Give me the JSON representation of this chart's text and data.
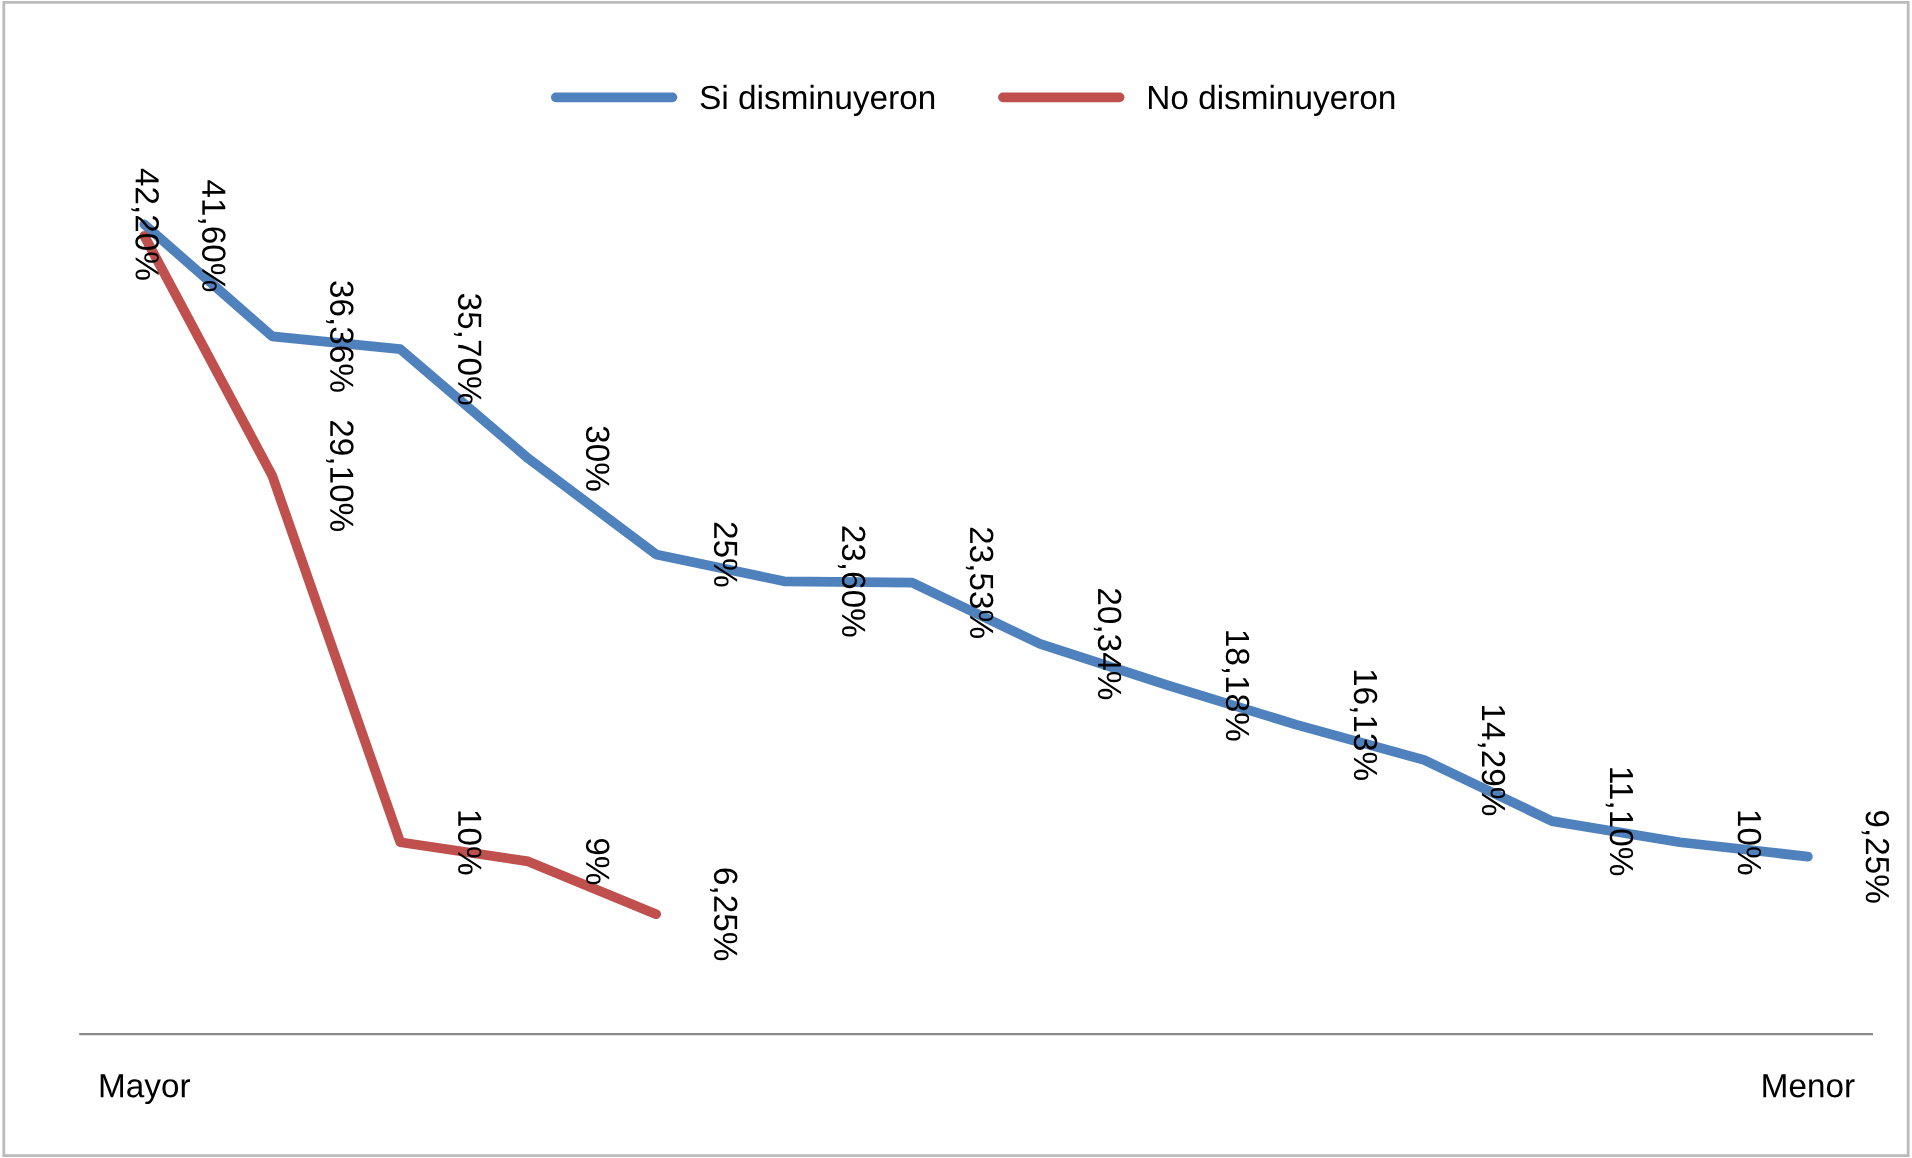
{
  "chart_data": {
    "type": "line",
    "categories": [
      "Mayor",
      null,
      null,
      null,
      null,
      null,
      null,
      null,
      null,
      null,
      null,
      null,
      null,
      "Menor"
    ],
    "series": [
      {
        "name": "Si disminuyeron",
        "color": "#4f81bd",
        "values": [
          42.2,
          36.36,
          35.7,
          30,
          25,
          23.6,
          23.53,
          20.34,
          18.18,
          16.13,
          14.29,
          11.1,
          10,
          9.25
        ],
        "value_labels": [
          "42,20%",
          "36,36%",
          "35,70%",
          "30%",
          "25%",
          "23,60%",
          "23,53%",
          "20,34%",
          "18,18%",
          "16,13%",
          "14,29%",
          "11,10%",
          "10%",
          "9,25%"
        ]
      },
      {
        "name": "No disminuyeron",
        "color": "#c0504d",
        "values": [
          41.6,
          29.1,
          10,
          9,
          6.25,
          null,
          null,
          null,
          null,
          null,
          null,
          null,
          null,
          null
        ],
        "value_labels": [
          "41,60%",
          "29,10%",
          "10%",
          "9%",
          "6,25%",
          null,
          null,
          null,
          null,
          null,
          null,
          null,
          null,
          null
        ]
      }
    ],
    "tick_labels": "x",
    "grid": false,
    "legend": "top",
    "marker": "none",
    "line_style": "solid"
  }
}
